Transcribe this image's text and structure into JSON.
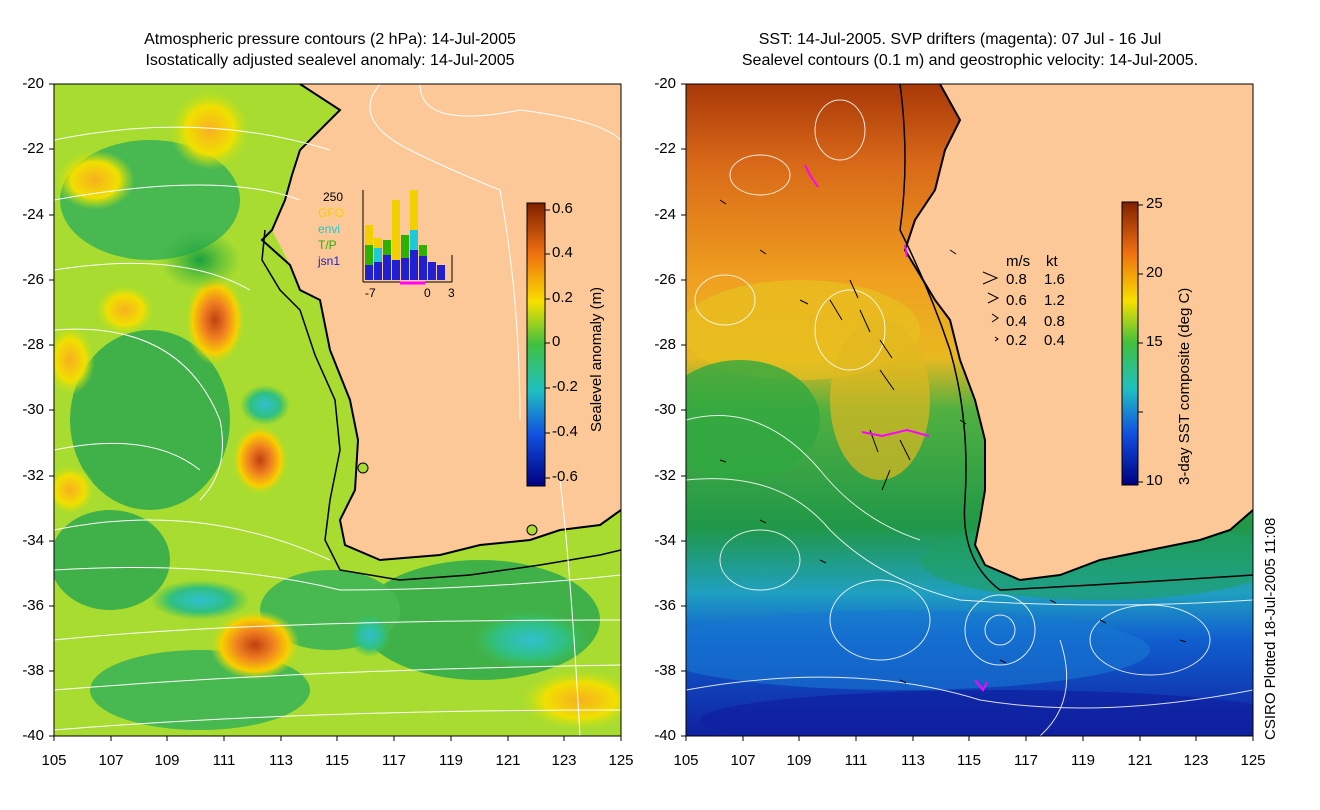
{
  "left_panel": {
    "title_line1": "Atmospheric pressure contours (2 hPa): 14-Jul-2005",
    "title_line2": "Isostatically adjusted sealevel anomaly: 14-Jul-2005",
    "colorbar_label": "Sealevel anomaly (m)",
    "colorbar_ticks": [
      "0.6",
      "0.4",
      "0.2",
      "0",
      "-0.2",
      "-0.4",
      "-0.6"
    ],
    "inset": {
      "ymax_label": "250",
      "legend": [
        "GFO",
        "envi",
        "T/P",
        "jsn1"
      ],
      "legend_colors": [
        "#f2d000",
        "#20c8d8",
        "#30b000",
        "#2020d0"
      ],
      "x_ticks": [
        "-7",
        "0",
        "3"
      ]
    }
  },
  "right_panel": {
    "title_line1": "SST: 14-Jul-2005. SVP drifters (magenta): 07 Jul - 16 Jul",
    "title_line2": "Sealevel contours (0.1 m) and geostrophic velocity: 14-Jul-2005.",
    "colorbar_label": "3-day SST composite (deg C)",
    "colorbar_ticks": [
      "25",
      "20",
      "15",
      "10"
    ],
    "speed_legend": {
      "header_ms": "m/s",
      "header_kt": "kt",
      "rows": [
        {
          "ms": "0.8",
          "kt": "1.6"
        },
        {
          "ms": "0.6",
          "kt": "1.2"
        },
        {
          "ms": "0.4",
          "kt": "0.8"
        },
        {
          "ms": "0.2",
          "kt": "0.4"
        }
      ]
    }
  },
  "axes": {
    "y_ticks": [
      "-20",
      "-22",
      "-24",
      "-26",
      "-28",
      "-30",
      "-32",
      "-34",
      "-36",
      "-38",
      "-40"
    ],
    "x_ticks": [
      "105",
      "107",
      "109",
      "111",
      "113",
      "115",
      "117",
      "119",
      "121",
      "123",
      "125"
    ]
  },
  "footer": "CSIRO Plotted 18-Jul-2005 11:08",
  "colors": {
    "land": "#fcc898",
    "coast": "#000000",
    "drifter": "#ff00ff"
  }
}
